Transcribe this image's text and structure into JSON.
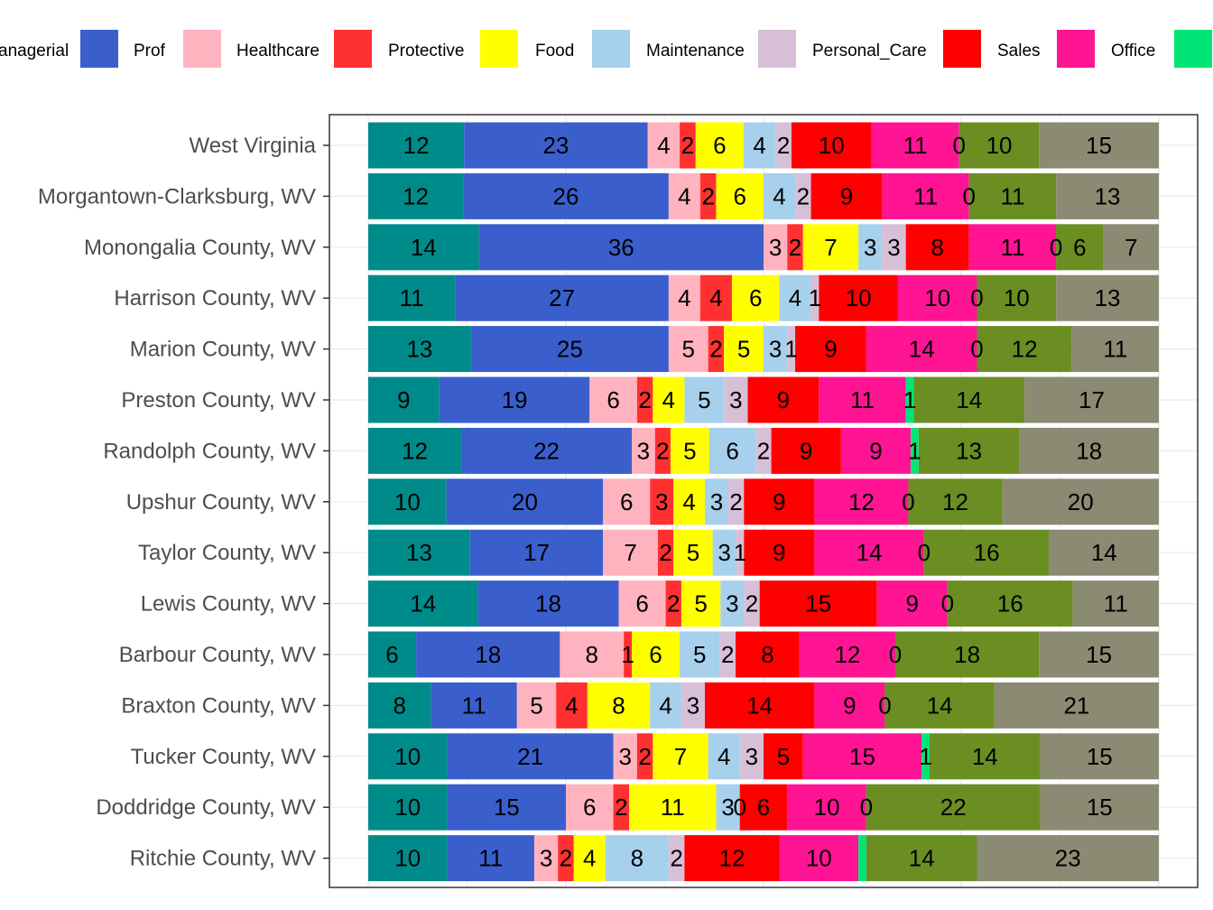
{
  "chart_data": {
    "type": "bar",
    "orientation": "horizontal",
    "stacked": true,
    "normalized": "percent",
    "legend_position": "top",
    "grid": true,
    "legend": [
      {
        "name": "Managerial",
        "color": "#008B8B",
        "visible_label": "anagerial"
      },
      {
        "name": "Prof",
        "color": "#3A5FCD",
        "visible_label": "Prof"
      },
      {
        "name": "Healthcare",
        "color": "#FFB3BE",
        "visible_label": "Healthcare"
      },
      {
        "name": "Protective",
        "color": "#FF3030",
        "visible_label": "Protective"
      },
      {
        "name": "Food",
        "color": "#FFFF00",
        "visible_label": "Food"
      },
      {
        "name": "Maintenance",
        "color": "#A6D0EC",
        "visible_label": "Maintenance"
      },
      {
        "name": "Personal_Care",
        "color": "#D8BFD8",
        "visible_label": "Personal_Care"
      },
      {
        "name": "Sales",
        "color": "#FF0000",
        "visible_label": "Sales"
      },
      {
        "name": "Office",
        "color": "#FF1493",
        "visible_label": "Office"
      },
      {
        "name": "",
        "color": "#00E676",
        "visible_label": ""
      }
    ],
    "segment_colors": [
      "#008B8B",
      "#3A5FCD",
      "#FFB3BE",
      "#FF3030",
      "#FFFF00",
      "#A6D0EC",
      "#D8BFD8",
      "#FF0000",
      "#FF1493",
      "#00E676",
      "#6B8E23",
      "#8B8B73"
    ],
    "categories": [
      "West Virginia",
      "Morgantown-Clarksburg, WV",
      "Monongalia County, WV",
      "Harrison County, WV",
      "Marion County, WV",
      "Preston County, WV",
      "Randolph County, WV",
      "Upshur County, WV",
      "Taylor County, WV",
      "Lewis County, WV",
      "Barbour County, WV",
      "Braxton County, WV",
      "Tucker County, WV",
      "Doddridge County, WV",
      "Ritchie County, WV"
    ],
    "values": [
      [
        12,
        23,
        4,
        2,
        6,
        4,
        2,
        10,
        11,
        0,
        10,
        15
      ],
      [
        12,
        26,
        4,
        2,
        6,
        4,
        2,
        9,
        11,
        0,
        11,
        13
      ],
      [
        14,
        36,
        3,
        2,
        7,
        3,
        3,
        8,
        11,
        0,
        6,
        7
      ],
      [
        11,
        27,
        4,
        4,
        6,
        4,
        1,
        10,
        10,
        0,
        10,
        13
      ],
      [
        13,
        25,
        5,
        2,
        5,
        3,
        1,
        9,
        14,
        0,
        12,
        11
      ],
      [
        9,
        19,
        6,
        2,
        4,
        5,
        3,
        9,
        11,
        1,
        14,
        17
      ],
      [
        12,
        22,
        3,
        2,
        5,
        6,
        2,
        9,
        9,
        1,
        13,
        18
      ],
      [
        10,
        20,
        6,
        3,
        4,
        3,
        2,
        9,
        12,
        0,
        12,
        20
      ],
      [
        13,
        17,
        7,
        2,
        5,
        3,
        1,
        9,
        14,
        0,
        16,
        14
      ],
      [
        14,
        18,
        6,
        2,
        5,
        3,
        2,
        15,
        9,
        0,
        16,
        11
      ],
      [
        6,
        18,
        8,
        1,
        6,
        5,
        2,
        8,
        12,
        0,
        18,
        15
      ],
      [
        8,
        11,
        5,
        4,
        8,
        4,
        3,
        14,
        9,
        0,
        14,
        21
      ],
      [
        10,
        21,
        3,
        2,
        7,
        4,
        3,
        5,
        15,
        1,
        14,
        15
      ],
      [
        10,
        15,
        6,
        2,
        11,
        3,
        0,
        6,
        10,
        0,
        22,
        15
      ],
      [
        10,
        11,
        3,
        2,
        4,
        8,
        2,
        12,
        10,
        1,
        14,
        23
      ]
    ],
    "labels": [
      [
        "12",
        "23",
        "4",
        "2",
        "6",
        "4",
        "2",
        "10",
        "11",
        "0",
        "10",
        "15"
      ],
      [
        "12",
        "26",
        "4",
        "2",
        "6",
        "4",
        "2",
        "9",
        "11",
        "0",
        "11",
        "13"
      ],
      [
        "14",
        "36",
        "3",
        "2",
        "7",
        "3",
        "3",
        "8",
        "11",
        "0",
        "6",
        "7"
      ],
      [
        "11",
        "27",
        "4",
        "4",
        "6",
        "4",
        "1",
        "10",
        "10",
        "0",
        "10",
        "13"
      ],
      [
        "13",
        "25",
        "5",
        "2",
        "5",
        "3",
        "1",
        "9",
        "14",
        "0",
        "12",
        "11"
      ],
      [
        "9",
        "19",
        "6",
        "2",
        "4",
        "5",
        "3",
        "9",
        "11",
        "1",
        "14",
        "17"
      ],
      [
        "12",
        "22",
        "3",
        "2",
        "5",
        "6",
        "2",
        "9",
        "9",
        "1",
        "13",
        "18"
      ],
      [
        "10",
        "20",
        "6",
        "3",
        "4",
        "3",
        "2",
        "9",
        "12",
        "0",
        "12",
        "20"
      ],
      [
        "13",
        "17",
        "7",
        "2",
        "5",
        "3",
        "1",
        "9",
        "14",
        "0",
        "16",
        "14"
      ],
      [
        "14",
        "18",
        "6",
        "2",
        "5",
        "3",
        "2",
        "15",
        "9",
        "0",
        "16",
        "11"
      ],
      [
        "6",
        "18",
        "8",
        "1",
        "6",
        "5",
        "2",
        "8",
        "12",
        "0",
        "18",
        "15"
      ],
      [
        "8",
        "11",
        "5",
        "4",
        "8",
        "4",
        "3",
        "14",
        "9",
        "0",
        "14",
        "21"
      ],
      [
        "10",
        "21",
        "3",
        "2",
        "7",
        "4",
        "3",
        "5",
        "15",
        "1",
        "14",
        "15"
      ],
      [
        "10",
        "15",
        "6",
        "2",
        "11",
        "3",
        "0",
        "6",
        "10",
        "0",
        "22",
        "15"
      ],
      [
        "10",
        "11",
        "3",
        "2",
        "4",
        "8",
        "2",
        "12",
        "10",
        "",
        "14",
        "23"
      ]
    ],
    "xlabel": "",
    "ylabel": "",
    "title": ""
  }
}
